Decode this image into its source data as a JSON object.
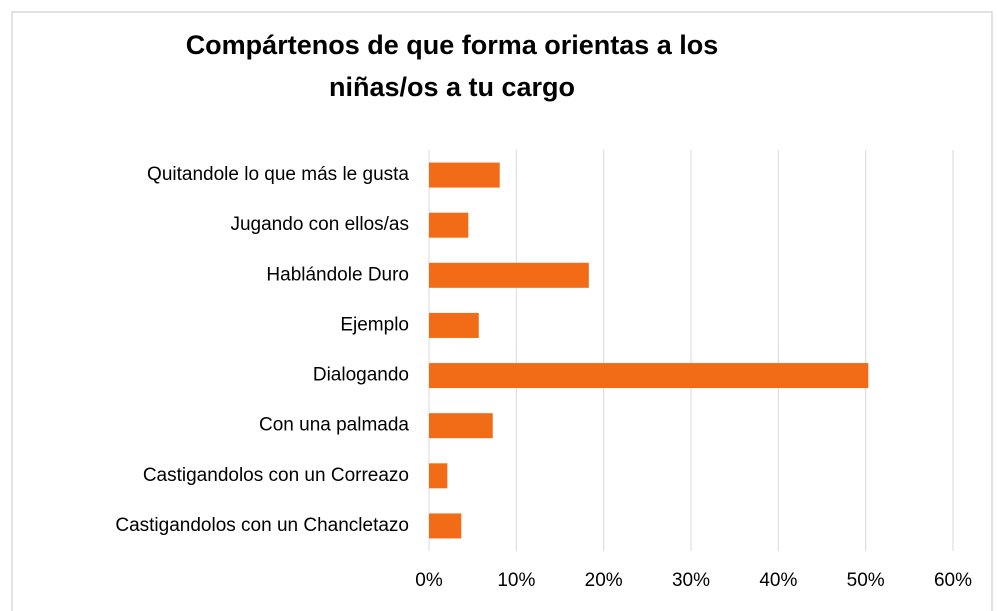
{
  "chart_data": {
    "type": "bar",
    "orientation": "horizontal",
    "title": [
      "Compártenos de que forma orientas a los",
      "niñas/os a tu cargo"
    ],
    "categories": [
      "Quitandole lo que más le gusta",
      "Jugando con ellos/as",
      "Hablándole Duro",
      "Ejemplo",
      "Dialogando",
      "Con una palmada",
      "Castigandolos con un Correazo",
      "Castigandolos con un Chancletazo"
    ],
    "values": [
      8.1,
      4.5,
      18.3,
      5.7,
      50.3,
      7.3,
      2.1,
      3.7
    ],
    "color": "#f26c18",
    "xlim": [
      0,
      60
    ],
    "xticks": [
      {
        "value": 0,
        "label": "0%"
      },
      {
        "value": 10,
        "label": "10%"
      },
      {
        "value": 20,
        "label": "20%"
      },
      {
        "value": 30,
        "label": "30%"
      },
      {
        "value": 40,
        "label": "40%"
      },
      {
        "value": 50,
        "label": "50%"
      },
      {
        "value": 60,
        "label": "60%"
      }
    ],
    "grid": true
  }
}
